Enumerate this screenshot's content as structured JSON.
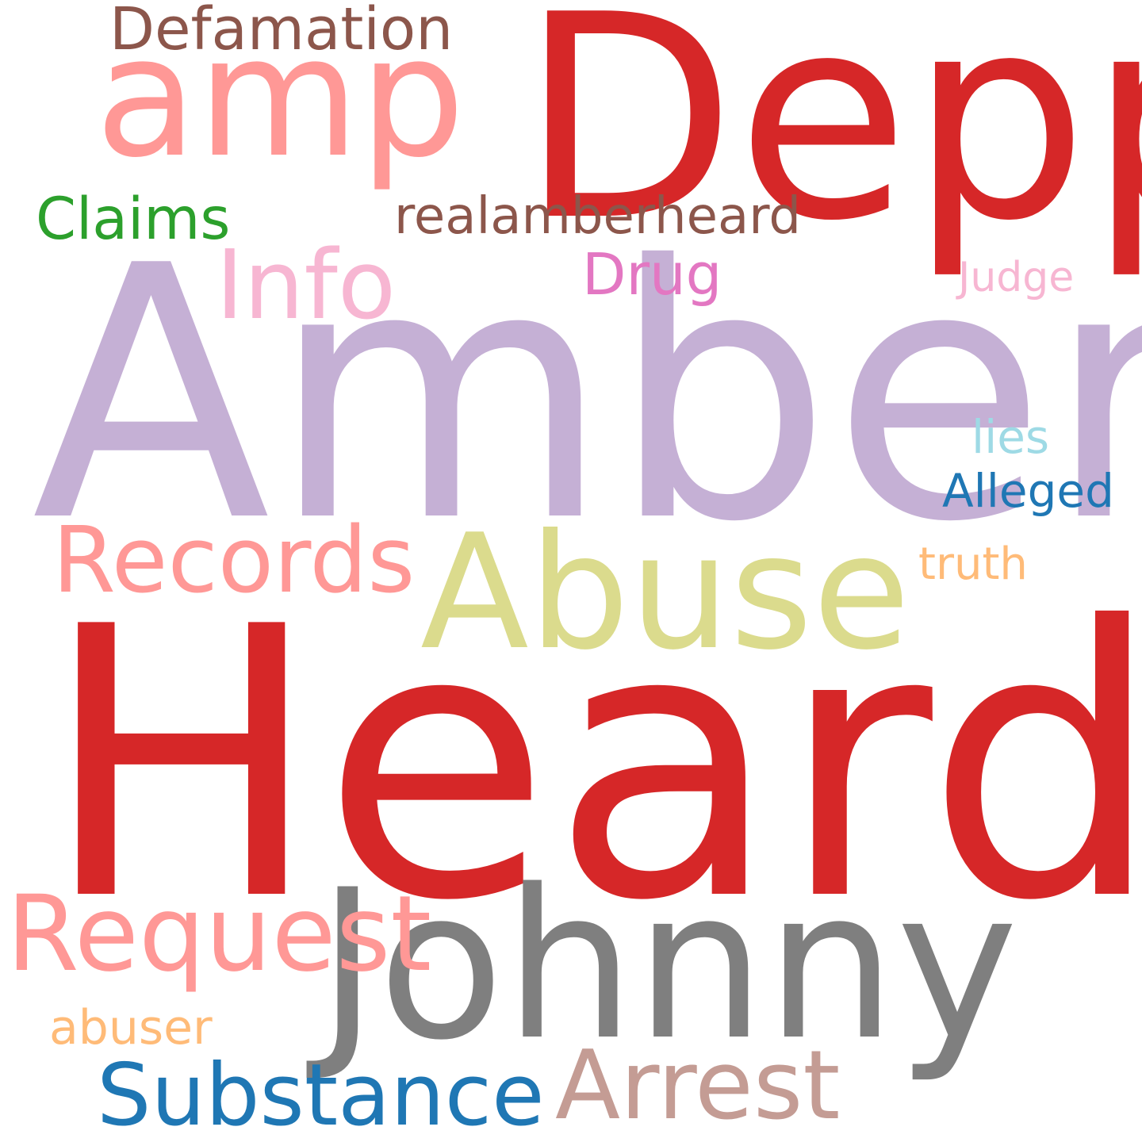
{
  "words": [
    {
      "id": "heard",
      "text": "Heard",
      "color": "#d62728"
    },
    {
      "id": "amber",
      "text": "Amber",
      "color": "#c5b0d5"
    },
    {
      "id": "depp",
      "text": "Depp",
      "color": "#d62728"
    },
    {
      "id": "johnny",
      "text": "Johnny",
      "color": "#7f7f7f"
    },
    {
      "id": "amp",
      "text": "amp",
      "color": "#ff9896"
    },
    {
      "id": "abuse",
      "text": "Abuse",
      "color": "#dbdb8d"
    },
    {
      "id": "records",
      "text": "Records",
      "color": "#ff9896"
    },
    {
      "id": "request",
      "text": "Request",
      "color": "#ff9896"
    },
    {
      "id": "info",
      "text": "Info",
      "color": "#f7b6d2"
    },
    {
      "id": "arrest",
      "text": "Arrest",
      "color": "#c49c94"
    },
    {
      "id": "substance",
      "text": "Substance",
      "color": "#1f77b4"
    },
    {
      "id": "defamation",
      "text": "Defamation",
      "color": "#8c564b"
    },
    {
      "id": "realamberheard",
      "text": "realamberheard",
      "color": "#8c564b"
    },
    {
      "id": "claims",
      "text": "Claims",
      "color": "#2ca02c"
    },
    {
      "id": "drug",
      "text": "Drug",
      "color": "#e377c2"
    },
    {
      "id": "alleged",
      "text": "Alleged",
      "color": "#1f77b4"
    },
    {
      "id": "judge",
      "text": "Judge",
      "color": "#f7b6d2"
    },
    {
      "id": "truth",
      "text": "truth",
      "color": "#ffbb78"
    },
    {
      "id": "lies",
      "text": "lies",
      "color": "#9edae5"
    },
    {
      "id": "abuser",
      "text": "abuser",
      "color": "#ffbb78"
    }
  ]
}
